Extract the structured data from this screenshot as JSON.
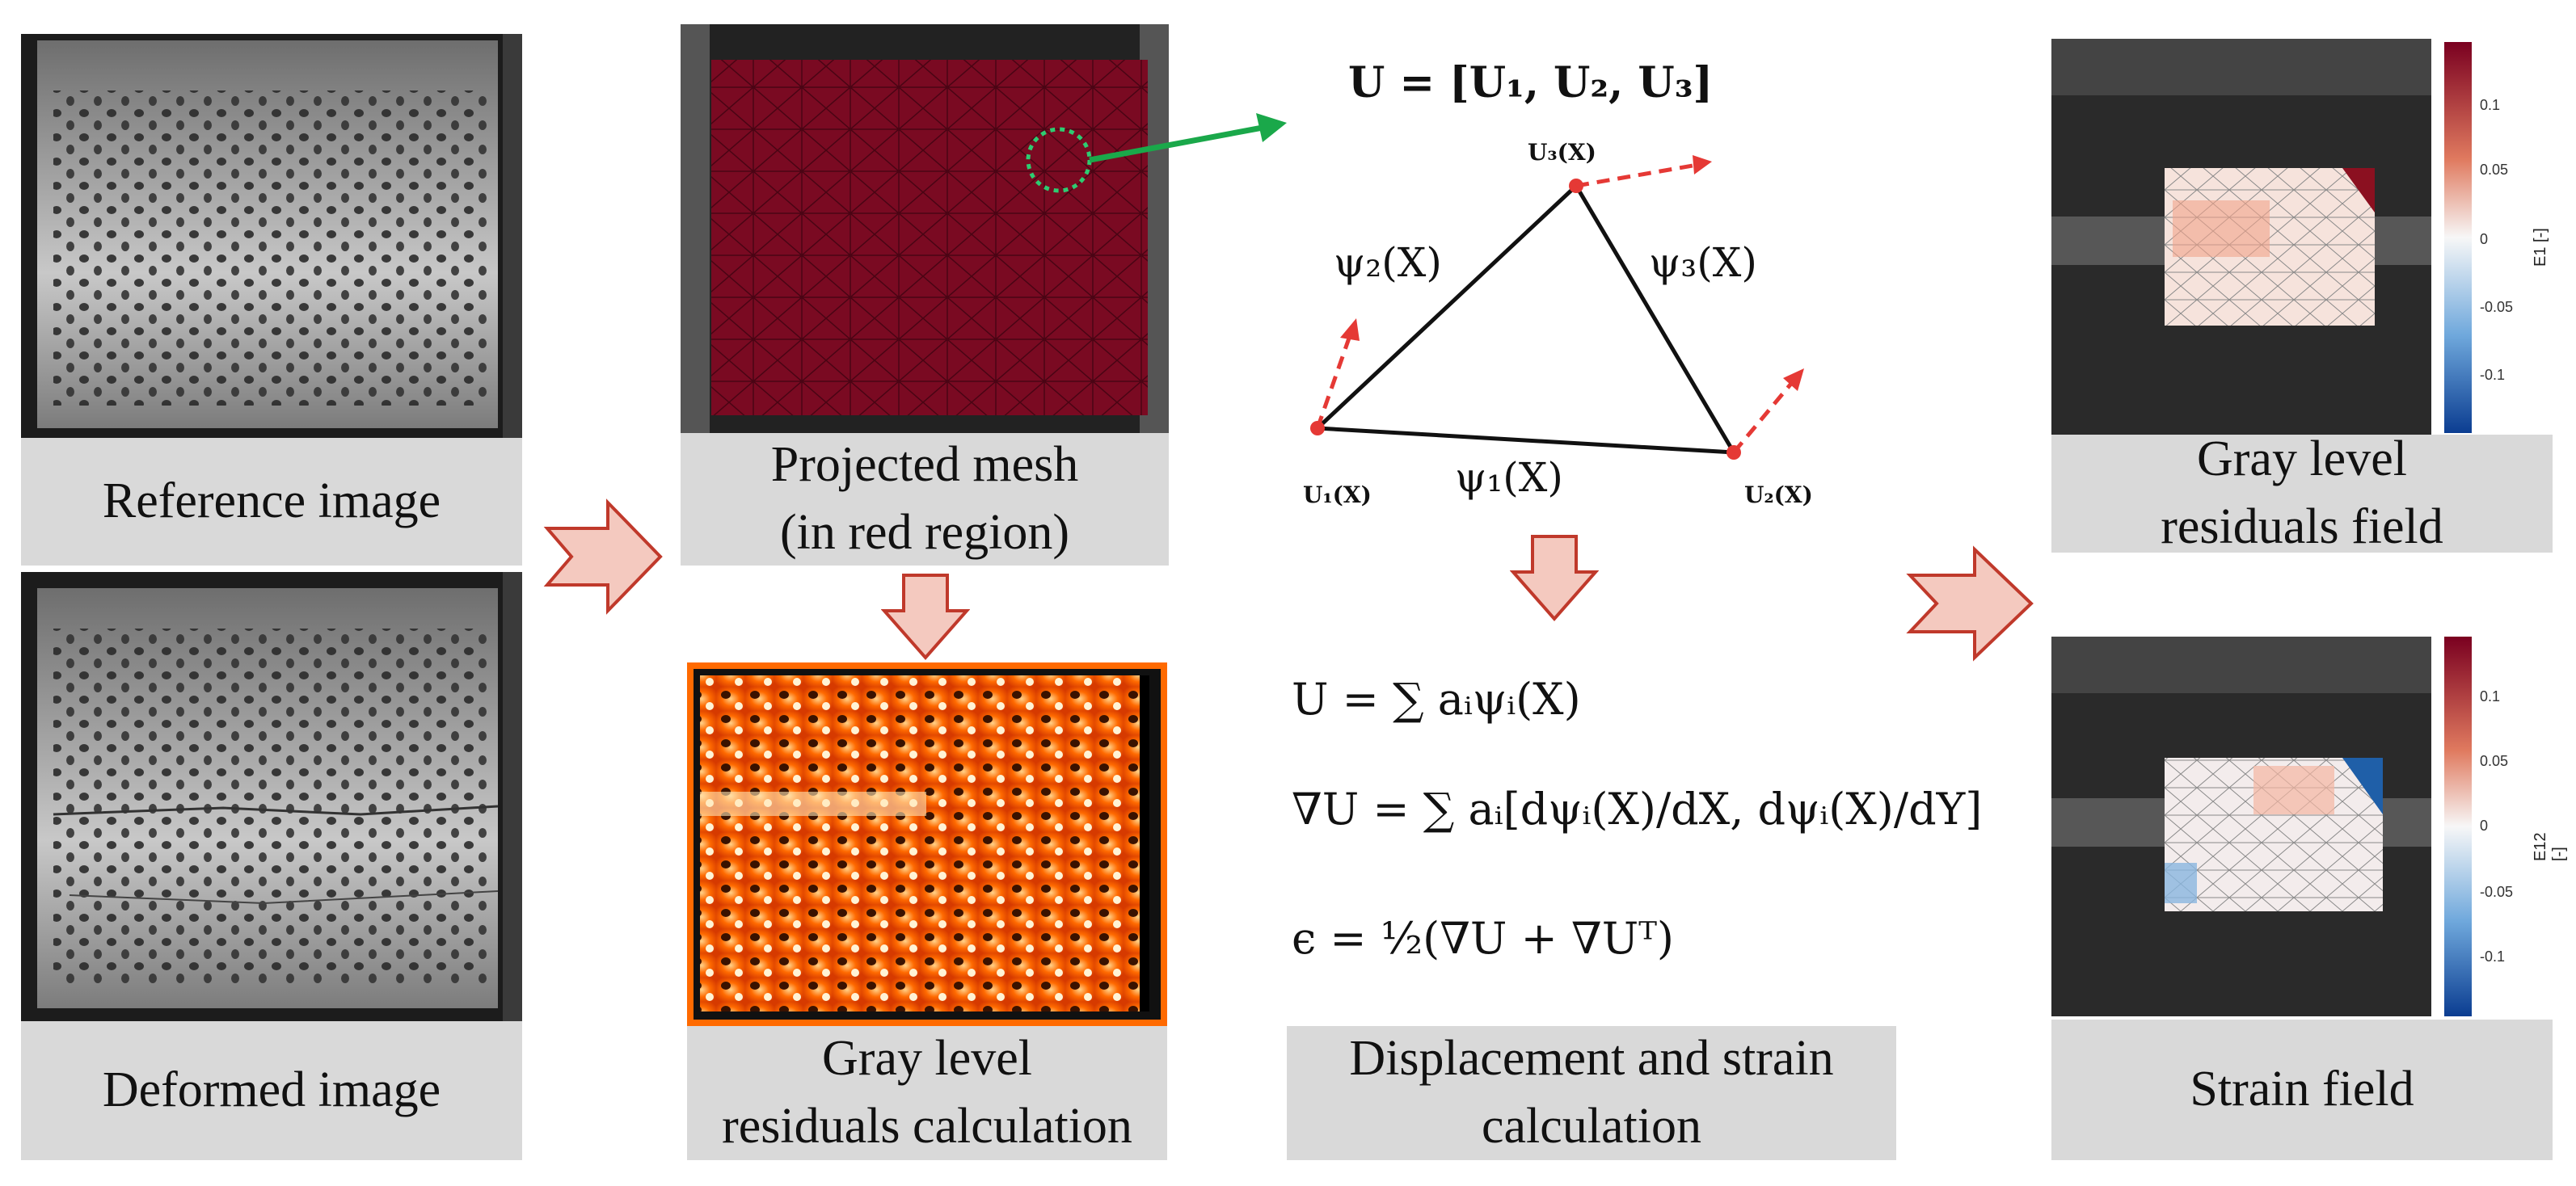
{
  "captions": {
    "reference": "Reference image",
    "deformed": "Deformed image",
    "projected": "Projected mesh\n(in red region)",
    "residuals_calc": "Gray level\nresiduals calculation",
    "displacement": "Displacement and strain\ncalculation",
    "residuals_field": "Gray level\nresiduals field",
    "strain_field": "Strain field"
  },
  "math": {
    "u_vector": "U = [U₁, U₂, U₃]",
    "node1": "U₁(X)",
    "node2": "U₂(X)",
    "node3": "U₃(X)",
    "psi1": "ψ₁(X)",
    "psi2": "ψ₂(X)",
    "psi3": "ψ₃(X)",
    "eq1": "U = ∑ aᵢψᵢ(X)",
    "eq2": "∇U = ∑ aᵢ[dψᵢ(X)/dX, dψᵢ(X)/dY]",
    "eq3": "ϵ = ½(∇U + ∇Uᵀ)"
  },
  "colorbars": {
    "top": {
      "label": "E1 [-]",
      "ticks": [
        "0.1",
        "0.05",
        "0",
        "-0.05",
        "-0.1"
      ]
    },
    "bottom": {
      "label": "E12 [-]",
      "ticks": [
        "0.1",
        "0.05",
        "0",
        "-0.05",
        "-0.1"
      ]
    }
  },
  "colors": {
    "arrow_fill": "#f4c9bf",
    "arrow_stroke": "#c0392b",
    "green_arrow": "#1aa84a",
    "caption_bg": "#d9d9d9",
    "mesh_red": "#7a0a22"
  }
}
